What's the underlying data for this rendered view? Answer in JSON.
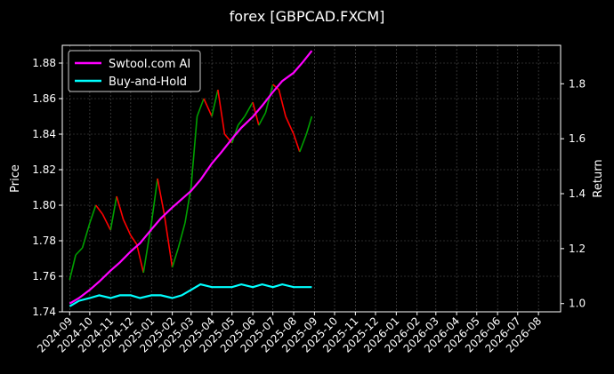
{
  "chart_data": {
    "type": "line",
    "title": "forex [GBPCAD.FXCM]",
    "xlabel": "",
    "ylabel_left": "Price",
    "ylabel_right": "Return",
    "grid": true,
    "legend_position": "top-left",
    "x_range": [
      "2024-08-21",
      "2026-09-03"
    ],
    "x_ticks": [
      "2024-09",
      "2024-10",
      "2024-11",
      "2024-12",
      "2025-01",
      "2025-02",
      "2025-03",
      "2025-04",
      "2025-05",
      "2025-06",
      "2025-07",
      "2025-08",
      "2025-09",
      "2025-10",
      "2025-11",
      "2025-12",
      "2026-01",
      "2026-02",
      "2026-03",
      "2026-04",
      "2026-05",
      "2026-06",
      "2026-07",
      "2026-08"
    ],
    "y_left_range": [
      1.74,
      1.89
    ],
    "y_left_ticks": [
      "1.74",
      "1.76",
      "1.78",
      "1.80",
      "1.82",
      "1.84",
      "1.86",
      "1.88"
    ],
    "y_right_range": [
      0.97,
      1.94
    ],
    "y_right_ticks": [
      "1.0",
      "1.2",
      "1.4",
      "1.6",
      "1.8"
    ],
    "price_series": {
      "name": "GBPCAD price",
      "up_color": "#00a000",
      "down_color": "#ff0000",
      "points": [
        [
          "2024-09-01",
          1.758
        ],
        [
          "2024-09-10",
          1.772
        ],
        [
          "2024-09-20",
          1.776
        ],
        [
          "2024-10-01",
          1.79
        ],
        [
          "2024-10-10",
          1.8
        ],
        [
          "2024-10-20",
          1.795
        ],
        [
          "2024-11-01",
          1.786
        ],
        [
          "2024-11-10",
          1.805
        ],
        [
          "2024-11-20",
          1.792
        ],
        [
          "2024-12-01",
          1.783
        ],
        [
          "2024-12-10",
          1.778
        ],
        [
          "2024-12-20",
          1.762
        ],
        [
          "2025-01-01",
          1.79
        ],
        [
          "2025-01-10",
          1.815
        ],
        [
          "2025-01-20",
          1.795
        ],
        [
          "2025-02-01",
          1.765
        ],
        [
          "2025-02-10",
          1.776
        ],
        [
          "2025-02-20",
          1.79
        ],
        [
          "2025-03-01",
          1.81
        ],
        [
          "2025-03-10",
          1.85
        ],
        [
          "2025-03-20",
          1.86
        ],
        [
          "2025-04-01",
          1.85
        ],
        [
          "2025-04-10",
          1.865
        ],
        [
          "2025-04-20",
          1.84
        ],
        [
          "2025-05-01",
          1.835
        ],
        [
          "2025-05-10",
          1.845
        ],
        [
          "2025-05-20",
          1.85
        ],
        [
          "2025-06-01",
          1.858
        ],
        [
          "2025-06-10",
          1.845
        ],
        [
          "2025-06-20",
          1.852
        ],
        [
          "2025-07-01",
          1.868
        ],
        [
          "2025-07-10",
          1.865
        ],
        [
          "2025-07-20",
          1.85
        ],
        [
          "2025-08-01",
          1.84
        ],
        [
          "2025-08-10",
          1.83
        ],
        [
          "2025-08-20",
          1.84
        ],
        [
          "2025-08-28",
          1.85
        ]
      ]
    },
    "series": [
      {
        "name": "Swtool.com AI",
        "color": "#ff00ff",
        "points": [
          [
            "2024-09-01",
            1.0
          ],
          [
            "2024-09-15",
            1.02
          ],
          [
            "2024-10-01",
            1.05
          ],
          [
            "2024-10-15",
            1.08
          ],
          [
            "2024-11-01",
            1.12
          ],
          [
            "2024-11-15",
            1.15
          ],
          [
            "2024-12-01",
            1.19
          ],
          [
            "2024-12-15",
            1.22
          ],
          [
            "2025-01-01",
            1.27
          ],
          [
            "2025-01-15",
            1.31
          ],
          [
            "2025-02-01",
            1.35
          ],
          [
            "2025-02-15",
            1.38
          ],
          [
            "2025-03-01",
            1.41
          ],
          [
            "2025-03-15",
            1.45
          ],
          [
            "2025-04-01",
            1.51
          ],
          [
            "2025-04-15",
            1.55
          ],
          [
            "2025-05-01",
            1.6
          ],
          [
            "2025-05-15",
            1.64
          ],
          [
            "2025-06-01",
            1.68
          ],
          [
            "2025-06-15",
            1.72
          ],
          [
            "2025-07-01",
            1.77
          ],
          [
            "2025-07-15",
            1.81
          ],
          [
            "2025-08-01",
            1.84
          ],
          [
            "2025-08-15",
            1.88
          ],
          [
            "2025-08-28",
            1.92
          ]
        ]
      },
      {
        "name": "Buy-and-Hold",
        "color": "#00ffff",
        "points": [
          [
            "2024-09-01",
            0.99
          ],
          [
            "2024-09-15",
            1.01
          ],
          [
            "2024-10-01",
            1.02
          ],
          [
            "2024-10-15",
            1.03
          ],
          [
            "2024-11-01",
            1.02
          ],
          [
            "2024-11-15",
            1.03
          ],
          [
            "2024-12-01",
            1.03
          ],
          [
            "2024-12-15",
            1.02
          ],
          [
            "2025-01-01",
            1.03
          ],
          [
            "2025-01-15",
            1.03
          ],
          [
            "2025-02-01",
            1.02
          ],
          [
            "2025-02-15",
            1.03
          ],
          [
            "2025-03-01",
            1.05
          ],
          [
            "2025-03-15",
            1.07
          ],
          [
            "2025-04-01",
            1.06
          ],
          [
            "2025-04-15",
            1.06
          ],
          [
            "2025-05-01",
            1.06
          ],
          [
            "2025-05-15",
            1.07
          ],
          [
            "2025-06-01",
            1.06
          ],
          [
            "2025-06-15",
            1.07
          ],
          [
            "2025-07-01",
            1.06
          ],
          [
            "2025-07-15",
            1.07
          ],
          [
            "2025-08-01",
            1.06
          ],
          [
            "2025-08-15",
            1.06
          ],
          [
            "2025-08-28",
            1.06
          ]
        ]
      }
    ]
  }
}
